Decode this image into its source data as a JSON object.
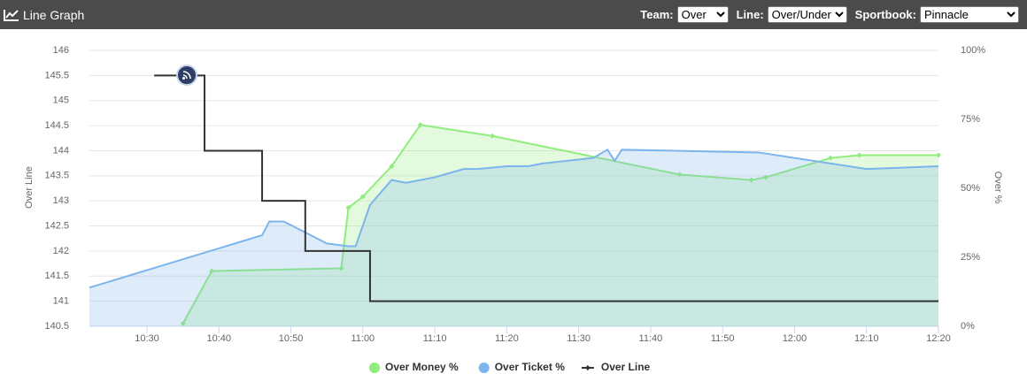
{
  "header": {
    "title": "Line Graph",
    "team": {
      "label": "Team:",
      "value": "Over"
    },
    "line": {
      "label": "Line:",
      "value": "Over/Under"
    },
    "sportsbook": {
      "label": "Sportbook:",
      "value": "Pinnacle"
    }
  },
  "chart_data": {
    "type": "line",
    "ylabel": "Over Line",
    "y2label": "Over %",
    "xlim": [
      "10:22",
      "12:20"
    ],
    "xticks": [
      "10:30",
      "10:40",
      "10:50",
      "11:00",
      "11:10",
      "11:20",
      "11:30",
      "11:40",
      "11:50",
      "12:00",
      "12:10",
      "12:20"
    ],
    "ylim": [
      140.5,
      146
    ],
    "yticks": [
      140.5,
      141,
      141.5,
      142,
      142.5,
      143,
      143.5,
      144,
      144.5,
      145,
      145.5,
      146
    ],
    "y2lim": [
      0,
      100
    ],
    "y2ticks": [
      {
        "value": 0,
        "label": "0%"
      },
      {
        "value": 25,
        "label": "25%"
      },
      {
        "value": 50,
        "label": "50%"
      },
      {
        "value": 75,
        "label": "75%"
      },
      {
        "value": 100,
        "label": "100%"
      }
    ],
    "grid": true,
    "series": [
      {
        "name": "Over Money %",
        "color": "#90ed7d",
        "axis": "y2",
        "area": true,
        "markers": true,
        "x": [
          "10:35",
          "10:39",
          "10:57",
          "10:58",
          "11:00",
          "11:04",
          "11:08",
          "11:18",
          "11:44",
          "11:54",
          "11:56",
          "12:05",
          "12:09",
          "12:20"
        ],
        "values": [
          1,
          20,
          21,
          43,
          47,
          58,
          73,
          69,
          55,
          53,
          54,
          61,
          62,
          62
        ]
      },
      {
        "name": "Over Ticket %",
        "color": "#7cb5ec",
        "axis": "y2",
        "area": true,
        "markers": false,
        "x": [
          "10:22",
          "10:46",
          "10:47",
          "10:49",
          "10:52",
          "10:55",
          "10:58",
          "10:59",
          "11:01",
          "11:04",
          "11:06",
          "11:10",
          "11:14",
          "11:16",
          "11:20",
          "11:23",
          "11:25",
          "11:32",
          "11:34",
          "11:35",
          "11:36",
          "11:55",
          "12:05",
          "12:10",
          "12:20"
        ],
        "values": [
          14,
          33,
          38,
          38,
          34,
          30,
          29,
          29,
          44,
          53,
          52,
          54,
          57,
          57,
          58,
          58,
          59,
          61,
          64,
          60,
          64,
          63,
          59,
          57,
          58
        ]
      },
      {
        "name": "Over Line",
        "color": "#333333",
        "axis": "y",
        "step": true,
        "markers": false,
        "x": [
          "10:31",
          "10:38",
          "10:46",
          "10:52",
          "11:01",
          "12:20"
        ],
        "values": [
          145.5,
          144,
          143,
          142,
          141,
          141
        ]
      }
    ]
  }
}
